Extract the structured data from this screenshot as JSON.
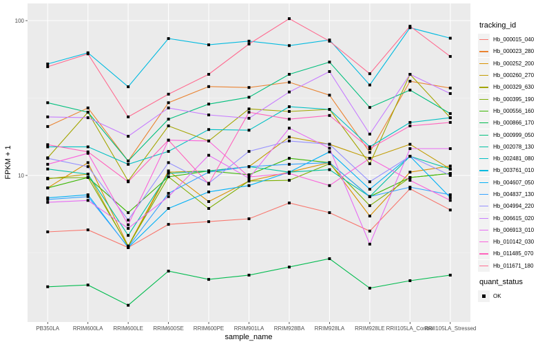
{
  "chart_data": {
    "type": "line",
    "title": "",
    "xlabel": "sample_name",
    "ylabel": "FPKM + 1",
    "yscale": "log10",
    "ylim": [
      1.3,
      125
    ],
    "yticks": [
      10,
      100
    ],
    "ytick_labels": [
      "10",
      "100"
    ],
    "grid": true,
    "legend_position": "right",
    "categories": [
      "PB350LA",
      "RRIM600LA",
      "RRIM600LE",
      "RRIM600SE",
      "RRIM600PE",
      "RRIM901LA",
      "RRIM928BA",
      "RRIM928LA",
      "RRIM928LE",
      "RRII105LA_Control",
      "RRII105LA_Stressed"
    ],
    "series": [
      {
        "name": "Hb_000015_040",
        "color": "#F8766D",
        "values": [
          4.32,
          4.45,
          3.42,
          4.83,
          5.03,
          5.25,
          6.64,
          5.75,
          4.37,
          8.2,
          5.98
        ]
      },
      {
        "name": "Hb_000023_280",
        "color": "#EA8331",
        "values": [
          20.7,
          27.3,
          12.4,
          29.5,
          37.5,
          37.0,
          40.0,
          33.0,
          14.1,
          40.6,
          36.7
        ]
      },
      {
        "name": "Hb_000252_200",
        "color": "#D89000",
        "values": [
          8.3,
          12.1,
          3.5,
          10.7,
          6.78,
          9.2,
          10.5,
          12.1,
          5.47,
          10.5,
          11.5
        ]
      },
      {
        "name": "Hb_000260_270",
        "color": "#C09B00",
        "values": [
          9.5,
          10.2,
          3.45,
          10.5,
          10.7,
          11.4,
          17.7,
          15.9,
          12.9,
          15.9,
          11.0
        ]
      },
      {
        "name": "Hb_000329_630",
        "color": "#A3A500",
        "values": [
          13.0,
          25.6,
          9.2,
          20.9,
          16.7,
          26.9,
          25.9,
          26.7,
          11.9,
          45.0,
          23.6
        ]
      },
      {
        "name": "Hb_000395_190",
        "color": "#7CAE00",
        "values": [
          9.6,
          9.7,
          3.5,
          9.8,
          6.12,
          9.2,
          9.3,
          11.9,
          6.38,
          9.7,
          10.3
        ]
      },
      {
        "name": "Hb_000556_160",
        "color": "#39B600",
        "values": [
          8.3,
          9.7,
          5.75,
          9.8,
          10.7,
          10.1,
          12.9,
          12.1,
          7.3,
          9.7,
          10.3
        ]
      },
      {
        "name": "Hb_000866_170",
        "color": "#00BB4E",
        "values": [
          1.91,
          1.96,
          1.45,
          2.41,
          2.13,
          2.27,
          2.56,
          2.9,
          1.87,
          2.09,
          2.27
        ]
      },
      {
        "name": "Hb_000999_050",
        "color": "#00BF7D",
        "values": [
          29.5,
          25.6,
          12.4,
          23.1,
          28.9,
          32.0,
          45.0,
          54.0,
          27.5,
          35.6,
          25.1
        ]
      },
      {
        "name": "Hb_002078_130",
        "color": "#00C1A3",
        "values": [
          11.0,
          10.2,
          4.1,
          10.3,
          10.7,
          11.4,
          10.5,
          10.9,
          7.3,
          13.3,
          11.0
        ]
      },
      {
        "name": "Hb_002481_080",
        "color": "#00BFC4",
        "values": [
          15.3,
          15.3,
          11.8,
          14.3,
          19.8,
          19.6,
          27.8,
          26.7,
          15.3,
          22.0,
          23.6
        ]
      },
      {
        "name": "Hb_003761_010",
        "color": "#00BAE0",
        "values": [
          52.5,
          62.0,
          37.4,
          76.6,
          69.8,
          73.7,
          69.0,
          75.0,
          38.4,
          90.0,
          77.0
        ]
      },
      {
        "name": "Hb_004607_050",
        "color": "#00B0F6",
        "values": [
          7.16,
          7.5,
          3.42,
          6.12,
          7.83,
          8.6,
          10.5,
          14.2,
          8.15,
          13.3,
          7.2
        ]
      },
      {
        "name": "Hb_004837_130",
        "color": "#35A2FF",
        "values": [
          7.0,
          7.3,
          3.45,
          7.66,
          10.5,
          11.4,
          11.8,
          12.1,
          7.3,
          8.4,
          7.5
        ]
      },
      {
        "name": "Hb_004994_220",
        "color": "#9590FF",
        "values": [
          12.9,
          11.4,
          5.15,
          12.1,
          8.9,
          14.3,
          16.7,
          15.9,
          9.1,
          13.3,
          10.0
        ]
      },
      {
        "name": "Hb_006615_020",
        "color": "#C77CFF",
        "values": [
          23.9,
          23.6,
          17.9,
          27.3,
          24.6,
          23.4,
          34.6,
          46.9,
          18.5,
          45.0,
          33.8
        ]
      },
      {
        "name": "Hb_006913_010",
        "color": "#E76BF3",
        "values": [
          6.7,
          6.9,
          4.55,
          7.3,
          13.5,
          9.6,
          20.2,
          15.0,
          3.6,
          14.9,
          14.9
        ]
      },
      {
        "name": "Hb_010142_030",
        "color": "#FA62DB",
        "values": [
          11.8,
          13.9,
          4.8,
          16.9,
          16.7,
          9.8,
          10.3,
          8.6,
          12.9,
          9.3,
          6.9
        ]
      },
      {
        "name": "Hb_011485_070",
        "color": "#FF62BC",
        "values": [
          15.8,
          14.2,
          9.1,
          16.9,
          8.8,
          25.6,
          23.1,
          24.4,
          14.9,
          20.9,
          22.0
        ]
      },
      {
        "name": "Hb_011671_180",
        "color": "#FF6C91",
        "values": [
          50.4,
          61.0,
          23.9,
          33.5,
          45.0,
          70.6,
          103.0,
          73.7,
          45.4,
          92.0,
          58.7
        ]
      }
    ]
  },
  "legend": {
    "title": "tracking_id",
    "status_title": "quant_status",
    "status_items": [
      "OK"
    ]
  }
}
